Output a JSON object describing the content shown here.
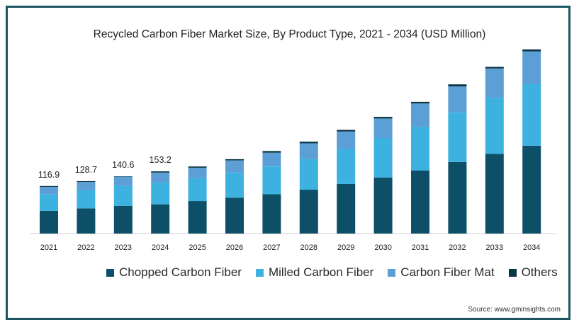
{
  "chart_data": {
    "type": "bar",
    "stacked": true,
    "title": "Recycled Carbon Fiber  Market Size, By Product Type, 2021 - 2034 (USD Million)",
    "categories": [
      "2021",
      "2022",
      "2023",
      "2024",
      "2025",
      "2026",
      "2027",
      "2028",
      "2029",
      "2030",
      "2031",
      "2032",
      "2033",
      "2034"
    ],
    "totals_labels": [
      "116.9",
      "128.7",
      "140.6",
      "153.2",
      "",
      "",
      "",
      "",
      "",
      "",
      "",
      "",
      "",
      ""
    ],
    "series": [
      {
        "name": "Chopped Carbon Fiber",
        "color": "#0c4f66",
        "values": [
          56,
          62,
          68,
          72,
          80,
          88,
          97,
          108,
          122,
          138,
          155,
          176,
          196,
          216
        ]
      },
      {
        "name": "Milled Carbon Fiber",
        "color": "#3db1e0",
        "values": [
          41,
          45,
          50,
          54,
          56,
          62,
          68,
          76,
          86,
          97,
          108,
          122,
          138,
          152
        ]
      },
      {
        "name": "Carbon Fiber Mat",
        "color": "#5b9fd6",
        "values": [
          18,
          20,
          22,
          24,
          26,
          30,
          34,
          38,
          43,
          48,
          57,
          64,
          72,
          80
        ]
      },
      {
        "name": "Others",
        "color": "#0a3545",
        "values": [
          2,
          2,
          1,
          3,
          3,
          3,
          4,
          4,
          4,
          4,
          4,
          5,
          4,
          5
        ]
      }
    ],
    "ylim": [
      0,
      470
    ],
    "grid": false,
    "legend": "bottom"
  },
  "legend": [
    {
      "label": "Chopped Carbon Fiber",
      "color": "#0c4f66"
    },
    {
      "label": "Milled Carbon Fiber",
      "color": "#3db1e0"
    },
    {
      "label": "Carbon Fiber Mat",
      "color": "#5b9fd6"
    },
    {
      "label": "Others",
      "color": "#0a3545"
    }
  ],
  "source": "Source: www.gminsights.com"
}
